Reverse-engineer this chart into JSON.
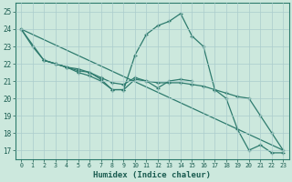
{
  "xlabel": "Humidex (Indice chaleur)",
  "background_color": "#cce8dd",
  "grid_color": "#aacccc",
  "line_color": "#2e7b6e",
  "xlim": [
    -0.5,
    23.5
  ],
  "ylim": [
    16.5,
    25.5
  ],
  "xticks": [
    0,
    1,
    2,
    3,
    4,
    5,
    6,
    7,
    8,
    9,
    10,
    11,
    12,
    13,
    14,
    15,
    16,
    17,
    18,
    19,
    20,
    21,
    22,
    23
  ],
  "yticks": [
    17,
    18,
    19,
    20,
    21,
    22,
    23,
    24,
    25
  ],
  "line1_x": [
    0,
    1,
    2,
    3,
    4,
    5,
    6,
    7,
    8,
    9,
    10,
    11,
    12,
    13,
    14,
    15,
    16,
    17,
    18,
    19,
    20,
    21,
    22,
    23
  ],
  "line1_y": [
    24.0,
    23.0,
    22.2,
    22.0,
    21.8,
    21.5,
    21.3,
    21.0,
    20.5,
    20.5,
    22.5,
    23.7,
    24.2,
    24.45,
    24.9,
    23.6,
    23.0,
    20.5,
    20.0,
    18.2,
    17.0,
    17.3,
    16.85,
    16.85
  ],
  "line2_x": [
    0,
    2,
    3,
    4,
    5,
    6,
    7,
    8,
    9,
    10,
    11,
    12,
    13,
    14,
    15,
    16,
    17,
    18,
    19,
    20,
    21,
    22,
    23
  ],
  "line2_y": [
    24.0,
    22.2,
    22.0,
    21.8,
    21.6,
    21.5,
    21.2,
    20.9,
    20.8,
    21.2,
    21.0,
    20.9,
    20.9,
    20.9,
    20.8,
    20.7,
    20.5,
    20.3,
    20.1,
    20.0,
    19.0,
    18.0,
    17.0
  ],
  "line3_x": [
    2,
    3,
    4,
    5,
    6,
    7,
    8,
    9,
    10,
    11,
    12,
    13,
    14,
    15
  ],
  "line3_y": [
    22.2,
    22.0,
    21.8,
    21.7,
    21.5,
    21.1,
    20.5,
    20.5,
    21.1,
    21.0,
    20.6,
    21.0,
    21.1,
    21.0
  ],
  "line4_x": [
    0,
    23
  ],
  "line4_y": [
    24.0,
    17.0
  ]
}
